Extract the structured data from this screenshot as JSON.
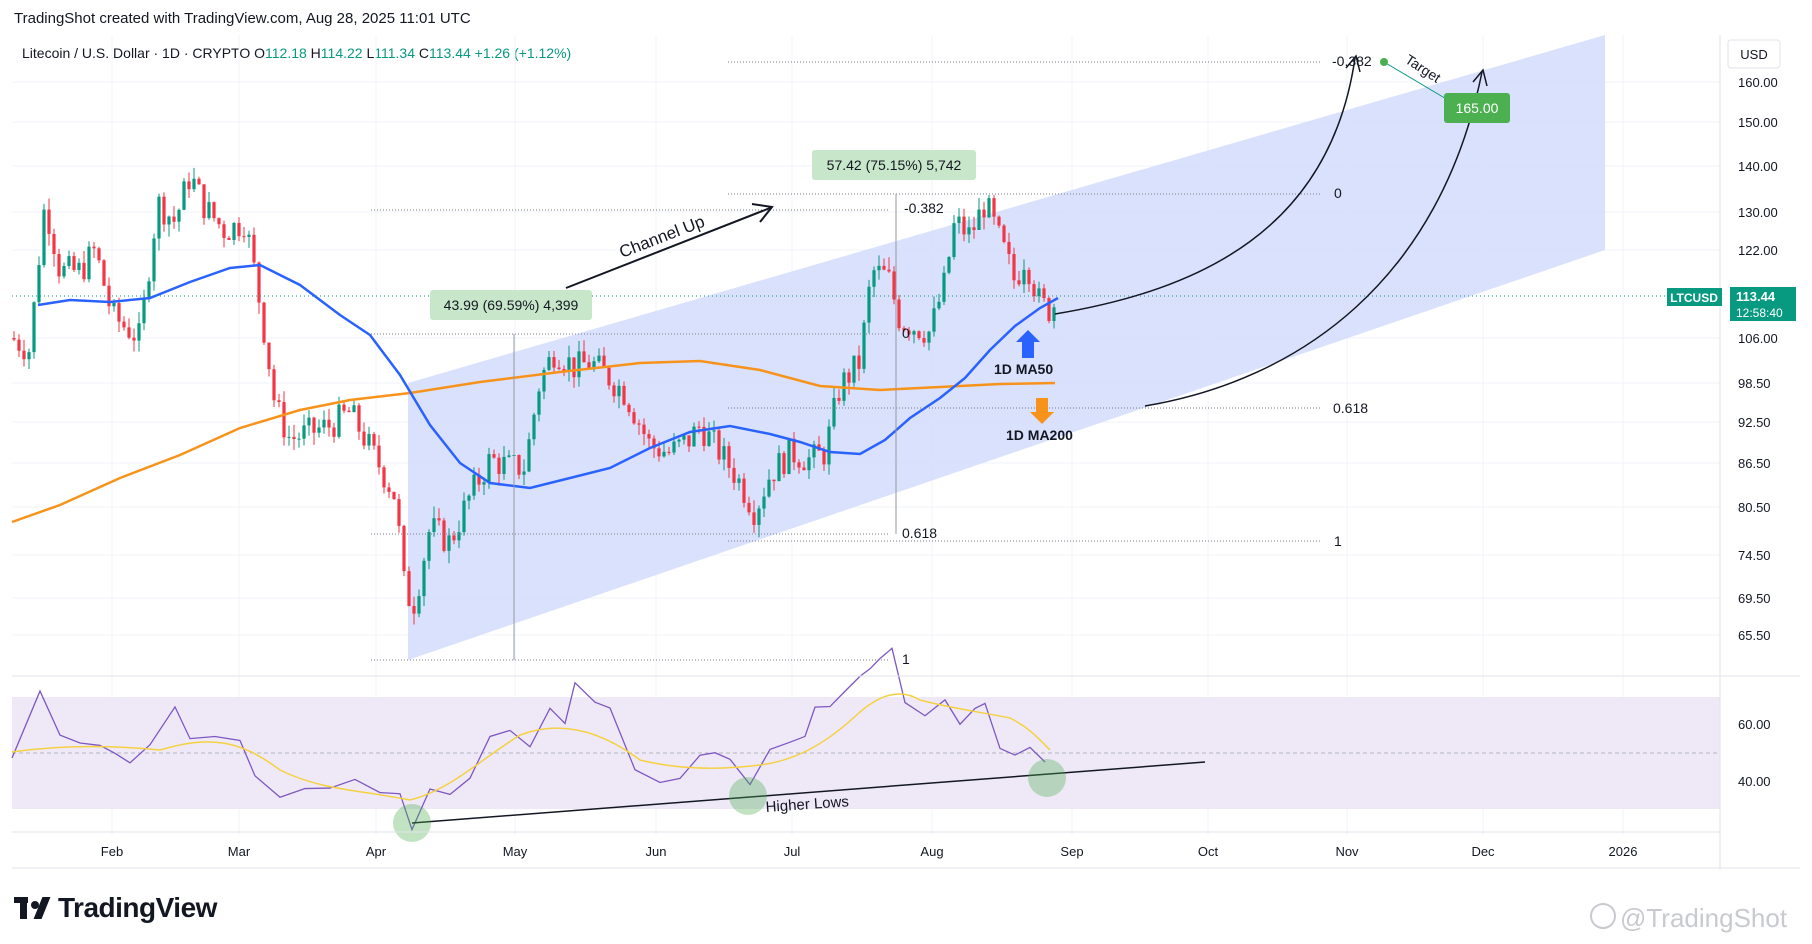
{
  "header": {
    "credit": "TradingShot created with TradingView.com, Aug 28, 2025 11:01 UTC"
  },
  "symbol": {
    "name": "Litecoin / U.S. Dollar · 1D · CRYPTO",
    "ohlc": [
      {
        "k": "O",
        "v": "112.18"
      },
      {
        "k": "H",
        "v": "114.22"
      },
      {
        "k": "L",
        "v": "111.34"
      },
      {
        "k": "C",
        "v": "113.44"
      }
    ],
    "change": "+1.26 (+1.12%)"
  },
  "chart_data": {
    "type": "line",
    "currency": "USD",
    "ticker": "LTCUSD",
    "last_price": "113.44",
    "countdown": "12:58:40",
    "y_ticks": [
      "160.00",
      "150.00",
      "140.00",
      "130.00",
      "122.00",
      "113.44",
      "106.00",
      "98.50",
      "92.50",
      "86.50",
      "80.50",
      "74.50",
      "69.50",
      "65.50"
    ],
    "x_ticks": [
      "Feb",
      "Mar",
      "Apr",
      "May",
      "Jun",
      "Jul",
      "Aug",
      "Sep",
      "Oct",
      "Nov",
      "Dec",
      "2026"
    ],
    "rsi_ticks": [
      "60.00",
      "40.00"
    ],
    "series": [
      {
        "name": "1D MA50",
        "color": "#2962ff"
      },
      {
        "name": "1D MA200",
        "color": "#f7931a"
      }
    ],
    "annotations": {
      "channel_label": "Channel Up",
      "measure_1": "43.99 (69.59%) 4,399",
      "measure_2": "57.42 (75.15%) 5,742",
      "target_label": "Target",
      "target_value": "165.00",
      "rsi_label": "Higher Lows",
      "fib_left": [
        "-0.382",
        "0",
        "0.618",
        "1"
      ],
      "fib_right": [
        "-0.382",
        "0",
        "0.618",
        "1"
      ]
    },
    "colors": {
      "up": "#089981",
      "down": "#f23645",
      "ma50": "#2962ff",
      "ma200": "#f7931a",
      "channel": "#d4dcfb",
      "rsi": "#7e57c2",
      "rsi_ma": "#f5d142"
    }
  },
  "brand": {
    "logo_text": "TradingView",
    "watermark": "@TradingShot"
  }
}
